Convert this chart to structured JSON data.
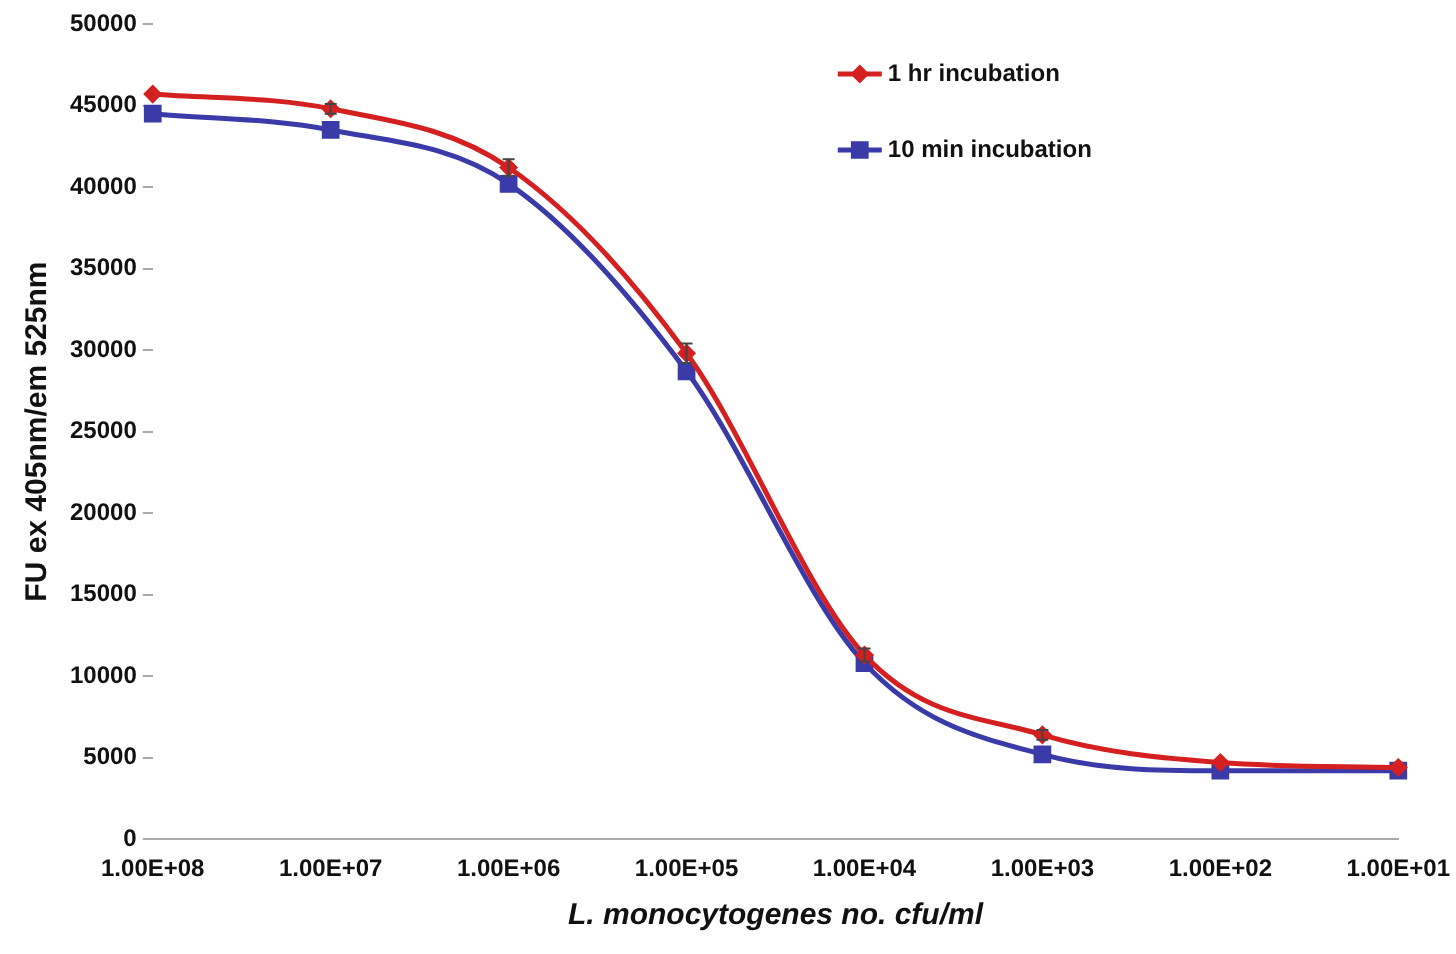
{
  "chart_data": {
    "type": "line",
    "xlabel": "L. monocytogenes no. cfu/ml",
    "ylabel": "FU ex 405nm/em 525nm",
    "categories": [
      "1.00E+08",
      "1.00E+07",
      "1.00E+06",
      "1.00E+05",
      "1.00E+04",
      "1.00E+03",
      "1.00E+02",
      "1.00E+01"
    ],
    "ylim": [
      0,
      50000
    ],
    "yticks": [
      0,
      5000,
      10000,
      15000,
      20000,
      25000,
      30000,
      35000,
      40000,
      45000,
      50000
    ],
    "grid": false,
    "legend": "top right",
    "series": [
      {
        "name": "1 hr incubation",
        "color": "#d42020",
        "marker": "diamond",
        "values": [
          45700,
          44800,
          41200,
          29800,
          11300,
          6400,
          4700,
          4400
        ],
        "errors": [
          null,
          300,
          500,
          600,
          400,
          300,
          null,
          null
        ]
      },
      {
        "name": "10 min incubation",
        "color": "#3a3aa8",
        "marker": "square",
        "values": [
          44500,
          43500,
          40200,
          28700,
          10800,
          5200,
          4200,
          4200
        ]
      }
    ]
  }
}
